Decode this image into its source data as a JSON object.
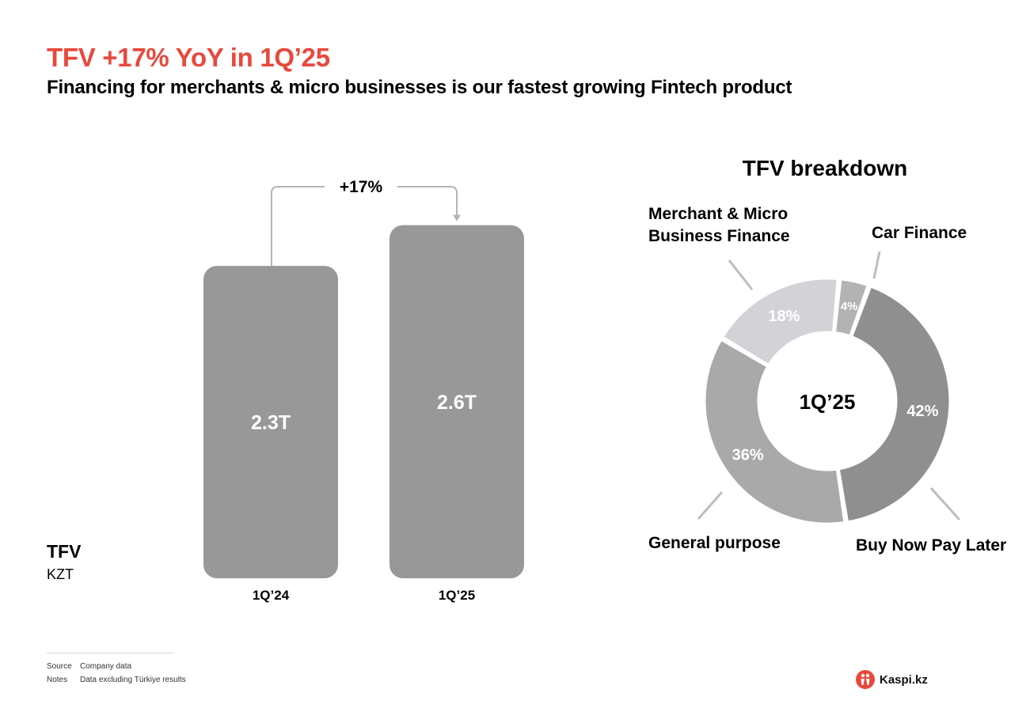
{
  "header": {
    "title": "TFV +17% YoY in 1Q’25",
    "subtitle": "Financing for merchants & micro businesses is our fastest growing Fintech product"
  },
  "left_panel": {
    "metric": "TFV",
    "unit": "KZT"
  },
  "chart_data": [
    {
      "type": "bar",
      "categories": [
        "1Q’24",
        "1Q’25"
      ],
      "values": [
        2.3,
        2.6
      ],
      "value_labels": [
        "2.3T",
        "2.6T"
      ],
      "growth_label": "+17%",
      "bar_color": "#989898"
    },
    {
      "type": "pie",
      "title": "TFV breakdown",
      "center_label": "1Q’25",
      "slices": [
        {
          "name": "Buy Now Pay Later",
          "value": 42,
          "label": "42%",
          "color": "#8f8f8f",
          "legend": "Buy Now Pay Later"
        },
        {
          "name": "General purpose",
          "value": 36,
          "label": "36%",
          "color": "#a9a9a9",
          "legend": "General purpose"
        },
        {
          "name": "Merchant & Micro Business Finance",
          "value": 18,
          "label": "18%",
          "color": "#d3d2d7",
          "legend": "Merchant & Micro|Business Finance"
        },
        {
          "name": "Car Finance",
          "value": 4,
          "label": "4%",
          "color": "#b3b3b3",
          "legend": "Car Finance"
        }
      ]
    }
  ],
  "footnotes": {
    "source_label": "Source",
    "source_text": "Company data",
    "notes_label": "Notes",
    "notes_text": "Data excluding Türkiye results"
  },
  "logo": {
    "text": "Kaspi.kz"
  },
  "colors": {
    "accent": "#e8493c"
  }
}
